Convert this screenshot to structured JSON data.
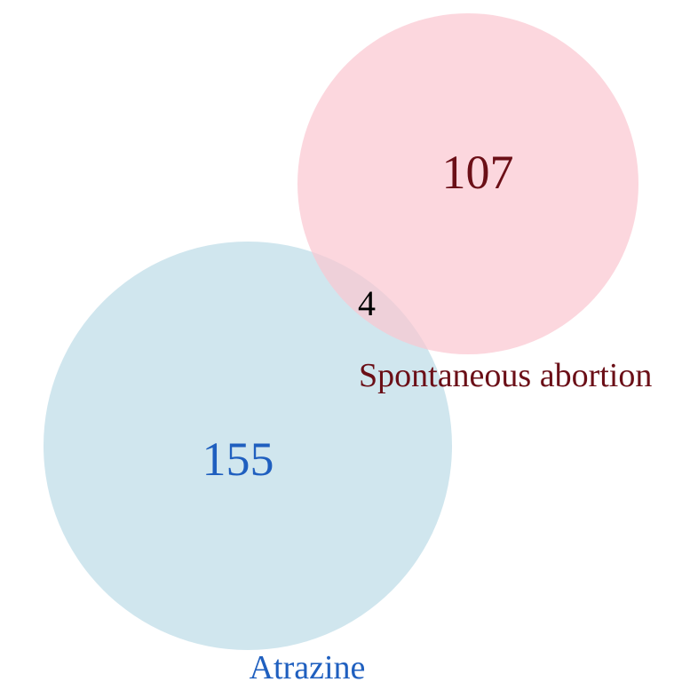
{
  "venn": {
    "sets": [
      {
        "id": "atrazine",
        "label": "Atrazine",
        "unique_count": "155",
        "fill_color": "#bcdbe7",
        "text_color": "#1f5fbf"
      },
      {
        "id": "spontaneous",
        "label": "Spontaneous abortion",
        "unique_count": "107",
        "fill_color": "#fbc6d0",
        "text_color": "#6b0f17"
      }
    ],
    "intersection": {
      "count": "4",
      "text_color": "#000000"
    }
  }
}
